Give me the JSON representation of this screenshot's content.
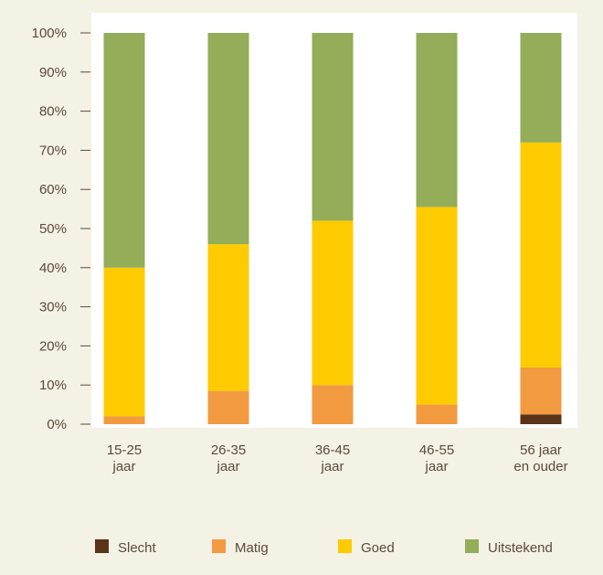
{
  "chart_data": {
    "type": "bar",
    "stacked": true,
    "categories": [
      [
        "15-25",
        "jaar"
      ],
      [
        "26-35",
        "jaar"
      ],
      [
        "36-45",
        "jaar"
      ],
      [
        "46-55",
        "jaar"
      ],
      [
        "56 jaar",
        "en ouder"
      ]
    ],
    "series": [
      {
        "name": "Slecht",
        "color": "#5b3319",
        "values": [
          0,
          0,
          0,
          0,
          2.5
        ]
      },
      {
        "name": "Matig",
        "color": "#f29a40",
        "values": [
          2,
          8.5,
          10,
          5,
          12
        ]
      },
      {
        "name": "Goed",
        "color": "#fdcb00",
        "values": [
          38,
          37.5,
          42,
          50.5,
          57.5
        ]
      },
      {
        "name": "Uitstekend",
        "color": "#93ad58",
        "values": [
          60,
          54,
          48,
          44.5,
          28
        ]
      }
    ],
    "ylim": [
      0,
      100
    ],
    "yticks": [
      0,
      10,
      20,
      30,
      40,
      50,
      60,
      70,
      80,
      90,
      100
    ],
    "ytick_suffix": "%",
    "legend_position": "bottom",
    "grid": false
  }
}
